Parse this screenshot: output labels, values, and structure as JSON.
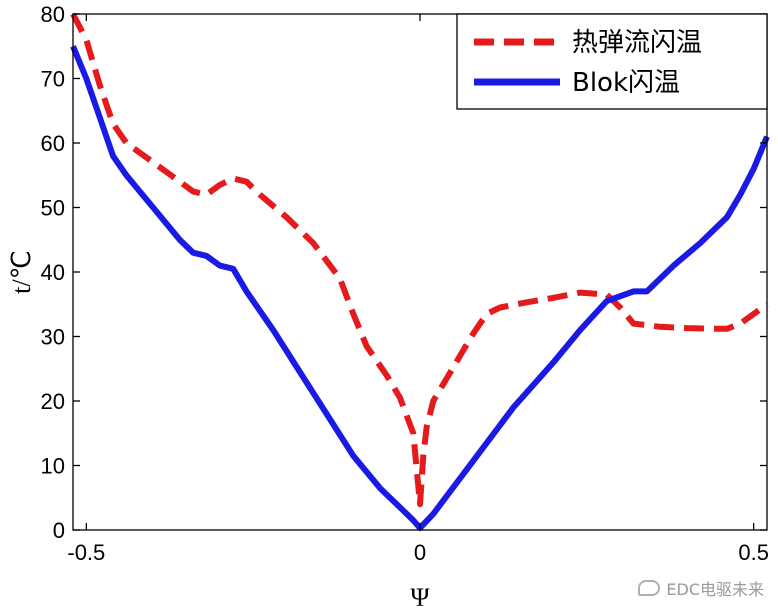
{
  "chart_data": {
    "type": "line",
    "xlabel": "Ψ",
    "ylabel": "t/℃",
    "xlim": [
      -0.52,
      0.52
    ],
    "ylim": [
      0,
      80
    ],
    "xticks": [
      -0.5,
      0,
      0.5
    ],
    "xtick_labels": [
      "-0.5",
      "0",
      "0.5"
    ],
    "yticks": [
      0,
      10,
      20,
      30,
      40,
      50,
      60,
      70,
      80
    ],
    "ytick_labels": [
      "0",
      "10",
      "20",
      "30",
      "40",
      "50",
      "60",
      "70",
      "80"
    ],
    "grid": false,
    "legend_position": "top-right",
    "series": [
      {
        "name": "热弹流闪温",
        "color": "#e41a1c",
        "style": "dashed",
        "x": [
          -0.52,
          -0.5,
          -0.48,
          -0.46,
          -0.44,
          -0.4,
          -0.36,
          -0.34,
          -0.32,
          -0.3,
          -0.28,
          -0.26,
          -0.24,
          -0.2,
          -0.16,
          -0.12,
          -0.1,
          -0.08,
          -0.05,
          -0.03,
          -0.01,
          0.0,
          0.005,
          0.01,
          0.02,
          0.04,
          0.06,
          0.08,
          0.1,
          0.12,
          0.16,
          0.2,
          0.24,
          0.28,
          0.3,
          0.32,
          0.36,
          0.4,
          0.44,
          0.46,
          0.48,
          0.5,
          0.52
        ],
        "y": [
          80,
          76,
          69,
          63,
          60,
          57,
          54,
          52.5,
          52,
          53.5,
          54.5,
          54,
          52,
          48.5,
          44.5,
          39,
          33.5,
          28.5,
          24,
          20.5,
          15,
          4,
          11.5,
          16,
          20,
          23.5,
          27,
          30.5,
          33.5,
          34.5,
          35.3,
          36,
          36.8,
          36.5,
          34.5,
          32,
          31.5,
          31.3,
          31.2,
          31.2,
          32,
          33.5,
          35
        ]
      },
      {
        "name": "Blok闪温",
        "color": "#1a1ae6",
        "style": "solid",
        "x": [
          -0.52,
          -0.5,
          -0.48,
          -0.46,
          -0.44,
          -0.4,
          -0.36,
          -0.34,
          -0.32,
          -0.3,
          -0.28,
          -0.26,
          -0.22,
          -0.18,
          -0.14,
          -0.1,
          -0.06,
          -0.03,
          -0.01,
          0.0,
          0.02,
          0.06,
          0.1,
          0.14,
          0.2,
          0.24,
          0.28,
          0.32,
          0.34,
          0.38,
          0.42,
          0.46,
          0.48,
          0.5,
          0.52
        ],
        "y": [
          75,
          70,
          64,
          58,
          55,
          50,
          45,
          43,
          42.5,
          41,
          40.5,
          37,
          31,
          24.5,
          18,
          11.5,
          6.5,
          3.5,
          1.5,
          0.3,
          2.5,
          8,
          13.5,
          19,
          26,
          31,
          35.5,
          37,
          37,
          41,
          44.5,
          48.5,
          52,
          56,
          61
        ]
      }
    ]
  },
  "watermark": {
    "text": "EDC电驱未来",
    "icon": "chat-bubble-icon"
  }
}
